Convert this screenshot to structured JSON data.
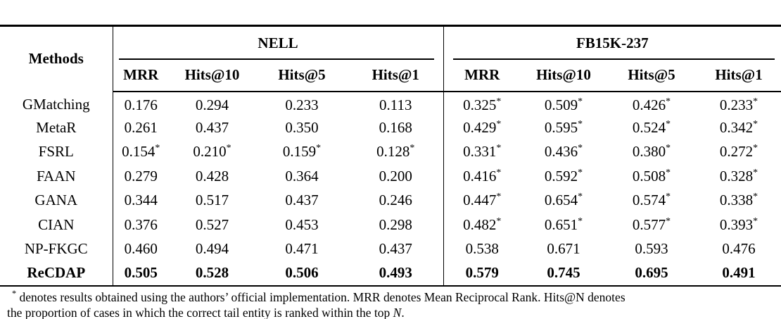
{
  "table": {
    "methods_header": "Methods",
    "groups": [
      {
        "label": "NELL",
        "metrics": [
          "MRR",
          "Hits@10",
          "Hits@5",
          "Hits@1"
        ]
      },
      {
        "label": "FB15K-237",
        "metrics": [
          "MRR",
          "Hits@10",
          "Hits@5",
          "Hits@1"
        ]
      }
    ],
    "rows": [
      {
        "method": "GMatching",
        "bold": false,
        "nell": [
          "0.176",
          "0.294",
          "0.233",
          "0.113"
        ],
        "fb": [
          "0.325*",
          "0.509*",
          "0.426*",
          "0.233*"
        ]
      },
      {
        "method": "MetaR",
        "bold": false,
        "nell": [
          "0.261",
          "0.437",
          "0.350",
          "0.168"
        ],
        "fb": [
          "0.429*",
          "0.595*",
          "0.524*",
          "0.342*"
        ]
      },
      {
        "method": "FSRL",
        "bold": false,
        "nell": [
          "0.154*",
          "0.210*",
          "0.159*",
          "0.128*"
        ],
        "fb": [
          "0.331*",
          "0.436*",
          "0.380*",
          "0.272*"
        ]
      },
      {
        "method": "FAAN",
        "bold": false,
        "nell": [
          "0.279",
          "0.428",
          "0.364",
          "0.200"
        ],
        "fb": [
          "0.416*",
          "0.592*",
          "0.508*",
          "0.328*"
        ]
      },
      {
        "method": "GANA",
        "bold": false,
        "nell": [
          "0.344",
          "0.517",
          "0.437",
          "0.246"
        ],
        "fb": [
          "0.447*",
          "0.654*",
          "0.574*",
          "0.338*"
        ]
      },
      {
        "method": "CIAN",
        "bold": false,
        "nell": [
          "0.376",
          "0.527",
          "0.453",
          "0.298"
        ],
        "fb": [
          "0.482*",
          "0.651*",
          "0.577*",
          "0.393*"
        ]
      },
      {
        "method": "NP-FKGC",
        "bold": false,
        "nell": [
          "0.460",
          "0.494",
          "0.471",
          "0.437"
        ],
        "fb": [
          "0.538",
          "0.671",
          "0.593",
          "0.476"
        ]
      },
      {
        "method": "ReCDAP",
        "bold": true,
        "nell": [
          "0.505",
          "0.528",
          "0.506",
          "0.493"
        ],
        "fb": [
          "0.579",
          "0.745",
          "0.695",
          "0.491"
        ]
      }
    ]
  },
  "footnote": {
    "marker": "*",
    "line1": " denotes results obtained using the authors’ official implementation. MRR denotes Mean Reciprocal Rank. Hits@N denotes",
    "line2_prefix": "the proportion of cases in which the correct tail entity is ranked within the top ",
    "line2_var": "N",
    "line2_suffix": "."
  },
  "colors": {
    "text": "#000000",
    "background": "#ffffff",
    "rule": "#000000"
  }
}
